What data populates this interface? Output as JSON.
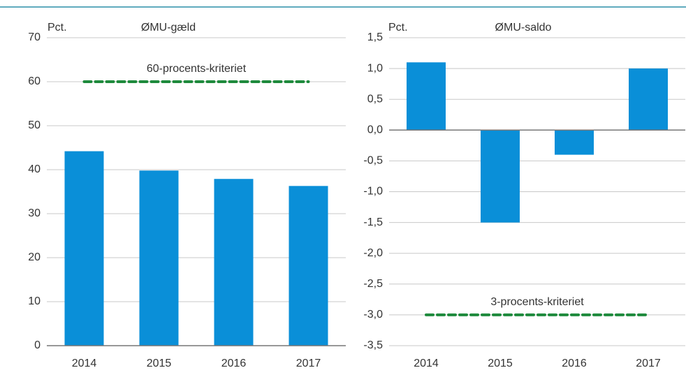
{
  "chart_data": [
    {
      "type": "bar",
      "title": "ØMU-gæld",
      "y_label": "Pct.",
      "categories": [
        "2014",
        "2015",
        "2016",
        "2017"
      ],
      "values": [
        44.2,
        39.8,
        37.9,
        36.3
      ],
      "color": "#0a8fd8",
      "ylim": [
        0,
        70
      ],
      "yticks": [
        0,
        10,
        20,
        30,
        40,
        50,
        60,
        70
      ],
      "grid": true,
      "reference": {
        "value": 60,
        "label": "60-procents-kriteriet",
        "color": "#1e8a3c"
      }
    },
    {
      "type": "bar",
      "title": "ØMU-saldo",
      "y_label": "Pct.",
      "categories": [
        "2014",
        "2015",
        "2016",
        "2017"
      ],
      "values": [
        1.1,
        -1.5,
        -0.4,
        1.0
      ],
      "color": "#0a8fd8",
      "ylim": [
        -3.5,
        1.5
      ],
      "yticks": [
        {
          "value": -3.5,
          "label": "-3,5"
        },
        {
          "value": -3,
          "label": "-3,0"
        },
        {
          "value": -2.5,
          "label": "-2,5"
        },
        {
          "value": -2,
          "label": "-2,0"
        },
        {
          "value": -1.5,
          "label": "-1,5"
        },
        {
          "value": -1,
          "label": "-1,0"
        },
        {
          "value": -0.5,
          "label": "-0,5"
        },
        {
          "value": 0,
          "label": "0,0"
        },
        {
          "value": 0.5,
          "label": "0,5"
        },
        {
          "value": 1,
          "label": "1,0"
        },
        {
          "value": 1.5,
          "label": "1,5"
        }
      ],
      "grid": true,
      "reference": {
        "value": -3,
        "label": "3-procents-kriteriet",
        "color": "#1e8a3c"
      }
    }
  ]
}
